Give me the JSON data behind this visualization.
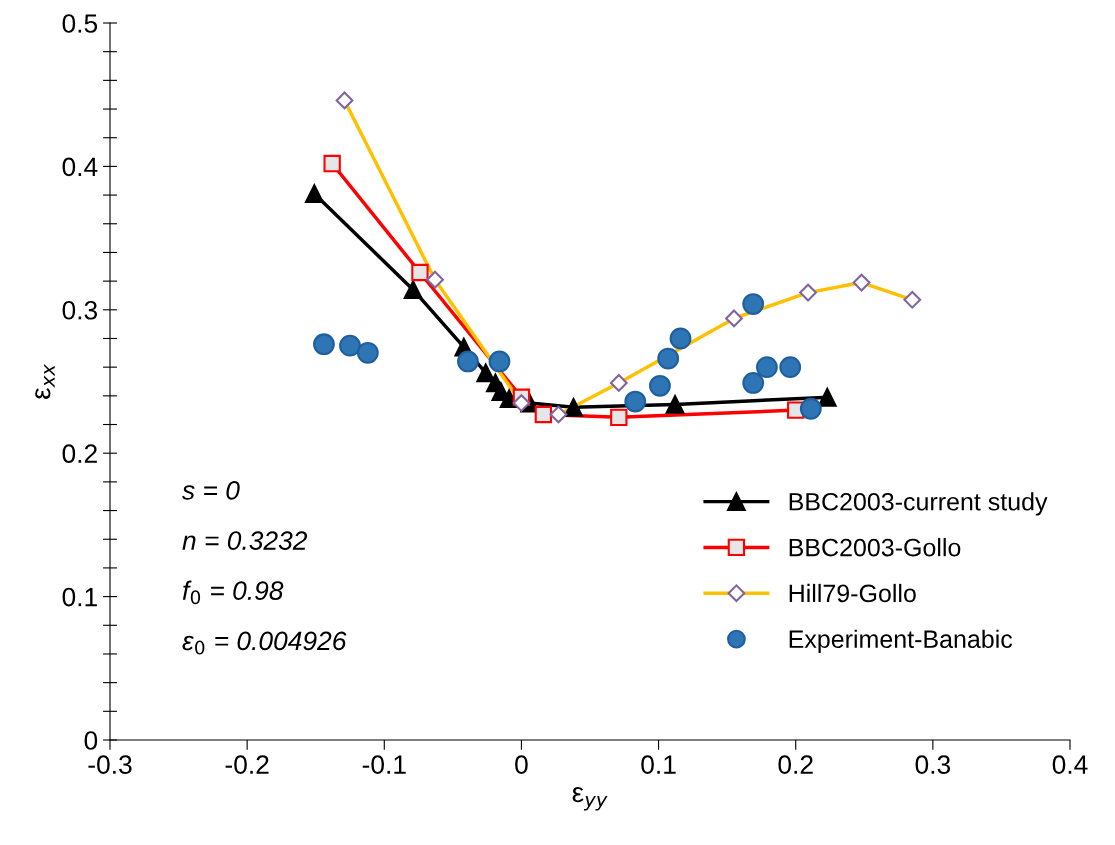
{
  "chart_data": {
    "type": "line",
    "xlabel": "ε$_{yy}$",
    "ylabel": "ε$_{xx}$",
    "xlim": [
      -0.3,
      0.4
    ],
    "xticks": [
      -0.3,
      -0.2,
      -0.1,
      0,
      0.1,
      0.2,
      0.3,
      0.4
    ],
    "ylim": [
      0,
      0.5
    ],
    "yticks": [
      0,
      {
        "value": 0.02,
        "label": null
      },
      {
        "value": 0.04,
        "label": null
      },
      {
        "value": 0.06,
        "label": null
      },
      {
        "value": 0.08,
        "label": null
      },
      0.1,
      {
        "value": 0.12,
        "label": null
      },
      {
        "value": 0.14,
        "label": null
      },
      {
        "value": 0.16,
        "label": null
      },
      {
        "value": 0.18,
        "label": null
      },
      0.2,
      {
        "value": 0.22,
        "label": null
      },
      {
        "value": 0.24,
        "label": null
      },
      {
        "value": 0.26,
        "label": null
      },
      {
        "value": 0.28,
        "label": null
      },
      0.3,
      {
        "value": 0.32,
        "label": null
      },
      {
        "value": 0.34,
        "label": null
      },
      {
        "value": 0.36,
        "label": null
      },
      {
        "value": 0.38,
        "label": null
      },
      0.4,
      {
        "value": 0.42,
        "label": null
      },
      {
        "value": 0.44,
        "label": null
      },
      {
        "value": 0.46,
        "label": null
      },
      {
        "value": 0.48,
        "label": null
      },
      0.5
    ],
    "grid": false,
    "legend": "bottom right",
    "annotations": [
      "s = 0",
      "n = 0.3232",
      "f$_{0}$ = 0.98",
      "ε$_{0}$ = 0.004926"
    ],
    "series": [
      {
        "name": "BBC2003-current study",
        "color": "#000000",
        "marker": "triangle",
        "x": [
          -0.151,
          -0.079,
          -0.042,
          -0.026,
          -0.019,
          -0.015,
          -0.009,
          0.006,
          0.038,
          0.112,
          0.223
        ],
        "values": [
          0.381,
          0.314,
          0.274,
          0.256,
          0.249,
          0.243,
          0.238,
          0.235,
          0.232,
          0.234,
          0.239
        ]
      },
      {
        "name": "BBC2003-Gollo",
        "color": "#ff0000",
        "marker": "square",
        "x": [
          -0.138,
          -0.074,
          0.0,
          0.016,
          0.071,
          0.2
        ],
        "values": [
          0.402,
          0.326,
          0.239,
          0.227,
          0.225,
          0.23
        ]
      },
      {
        "name": "Hill79-Gollo",
        "color": "#ffc000",
        "marker": "diamond",
        "x": [
          -0.129,
          -0.063,
          0.0,
          0.027,
          0.071,
          0.155,
          0.209,
          0.248,
          0.285
        ],
        "values": [
          0.446,
          0.321,
          0.235,
          0.227,
          0.249,
          0.294,
          0.312,
          0.319,
          0.307
        ]
      },
      {
        "name": "Experiment-Banabic",
        "type": "scatter",
        "color": "#2e75b6",
        "marker": "circle",
        "x": [
          -0.144,
          -0.125,
          -0.112,
          -0.039,
          -0.016,
          0.083,
          0.101,
          0.107,
          0.116,
          0.169,
          0.169,
          0.179,
          0.196,
          0.211
        ],
        "values": [
          0.276,
          0.275,
          0.27,
          0.264,
          0.264,
          0.236,
          0.247,
          0.266,
          0.28,
          0.304,
          0.249,
          0.26,
          0.26,
          0.231
        ]
      }
    ]
  }
}
